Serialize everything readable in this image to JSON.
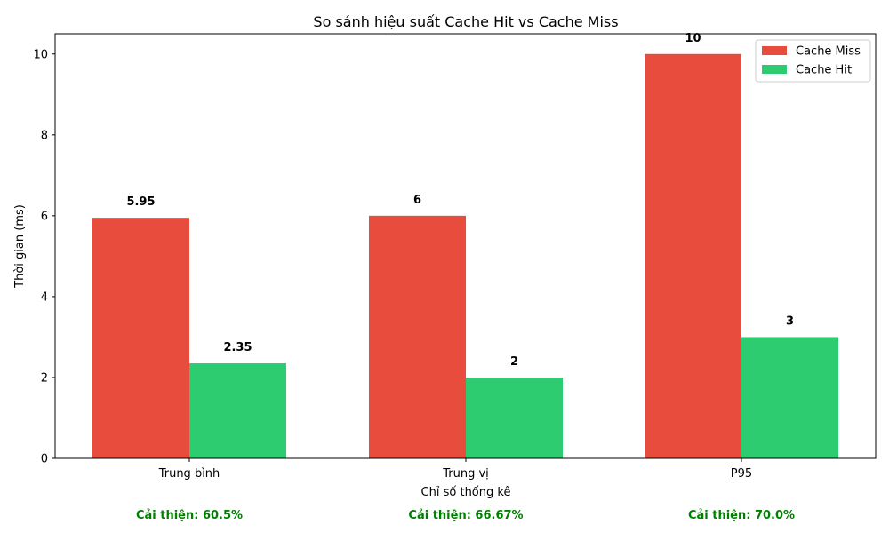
{
  "chart_data": {
    "type": "bar",
    "title": "So sánh hiệu suất Cache Hit vs Cache Miss",
    "xlabel": "Chỉ số thống kê",
    "ylabel": "Thời gian (ms)",
    "categories": [
      "Trung bình",
      "Trung vị",
      "P95"
    ],
    "series": [
      {
        "name": "Cache Miss",
        "color": "#e74c3c",
        "values": [
          5.95,
          6,
          10
        ],
        "labels": [
          "5.95",
          "6",
          "10"
        ]
      },
      {
        "name": "Cache Hit",
        "color": "#2ecc71",
        "values": [
          2.35,
          2,
          3
        ],
        "labels": [
          "2.35",
          "2",
          "3"
        ]
      }
    ],
    "ylim": [
      0,
      10.5
    ],
    "yticks": [
      0,
      2,
      4,
      6,
      8,
      10
    ],
    "grid": false,
    "legend_position": "top-right",
    "annotations": [
      "Cải thiện: 60.5%",
      "Cải thiện: 66.67%",
      "Cải thiện: 70.0%"
    ],
    "annotation_color": "#008000"
  }
}
